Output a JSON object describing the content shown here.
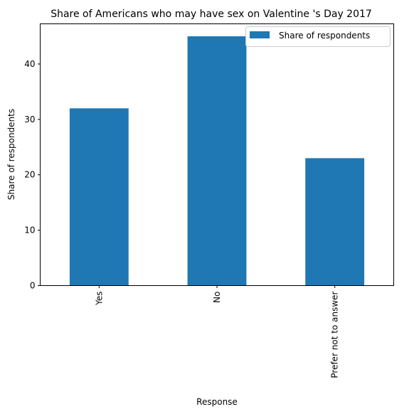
{
  "chart_data": {
    "type": "bar",
    "title": "Share of Americans who may have sex on Valentine 's Day 2017",
    "xlabel": "Response",
    "ylabel": "Share of respondents",
    "categories": [
      "Yes",
      "No",
      "Prefer not to answer"
    ],
    "series": [
      {
        "name": "Share of respondents",
        "values": [
          32,
          45,
          23
        ],
        "color": "#1f77b4"
      }
    ],
    "ylim": [
      0,
      47.25
    ],
    "yticks": [
      "0",
      "10",
      "20",
      "30",
      "40"
    ],
    "grid": false,
    "legend": "top-right"
  }
}
